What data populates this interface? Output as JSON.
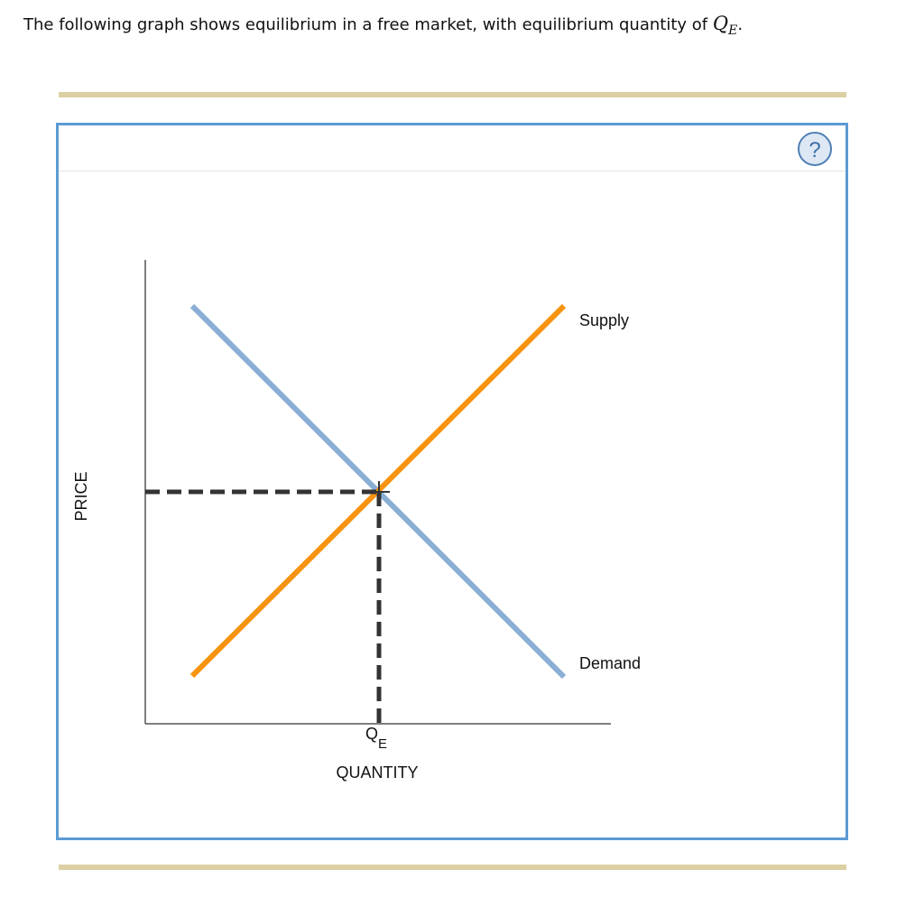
{
  "prompt": {
    "text": "The following graph shows equilibrium in a free market, with equilibrium quantity of",
    "math_base": "Q",
    "math_sub": "E",
    "end": "."
  },
  "graph": {
    "y_axis_label": "PRICE",
    "x_axis_label": "QUANTITY",
    "curves": [
      {
        "label": "Supply"
      },
      {
        "label": "Demand"
      }
    ],
    "equilibrium_label": {
      "base": "Q",
      "sub": "E"
    }
  },
  "help_button": "?"
}
